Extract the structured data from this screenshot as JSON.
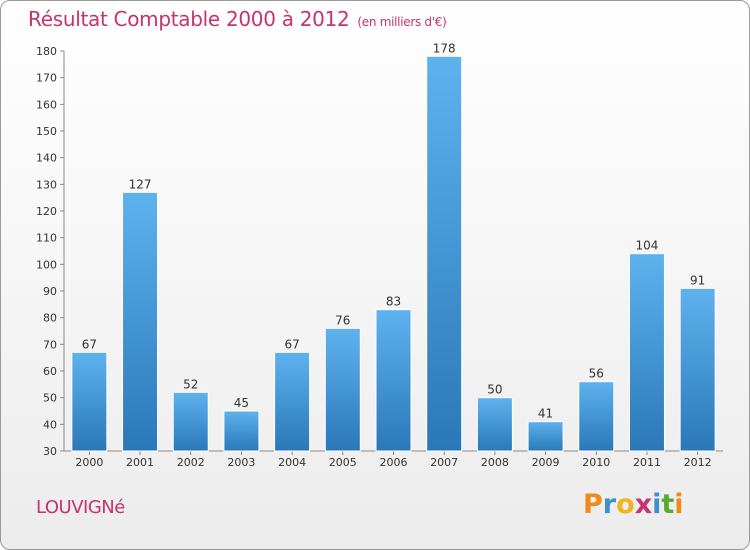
{
  "chart_data": {
    "type": "bar",
    "title": "Résultat Comptable 2000 à 2012",
    "subtitle": "(en milliers d'€)",
    "categories": [
      "2000",
      "2001",
      "2002",
      "2003",
      "2004",
      "2005",
      "2006",
      "2007",
      "2008",
      "2009",
      "2010",
      "2011",
      "2012"
    ],
    "values": [
      67,
      127,
      52,
      45,
      67,
      76,
      83,
      178,
      50,
      41,
      56,
      104,
      91
    ],
    "ylim": [
      30,
      180
    ],
    "yticks": [
      30,
      40,
      50,
      60,
      70,
      80,
      90,
      100,
      110,
      120,
      130,
      140,
      150,
      160,
      170,
      180
    ],
    "grid": false,
    "bar_color_light": "#5eb2ee",
    "bar_color_dark": "#2a78b8"
  },
  "footer": {
    "town": "LOUVIGNé",
    "logo_letters": [
      "P",
      "r",
      "o",
      "x",
      "i",
      "t",
      "i"
    ],
    "logo_colors": [
      "#f08a1c",
      "#3c8fd0",
      "#f0b41c",
      "#c8326e",
      "#3c8fd0",
      "#5aaa32",
      "#f08a1c"
    ]
  }
}
